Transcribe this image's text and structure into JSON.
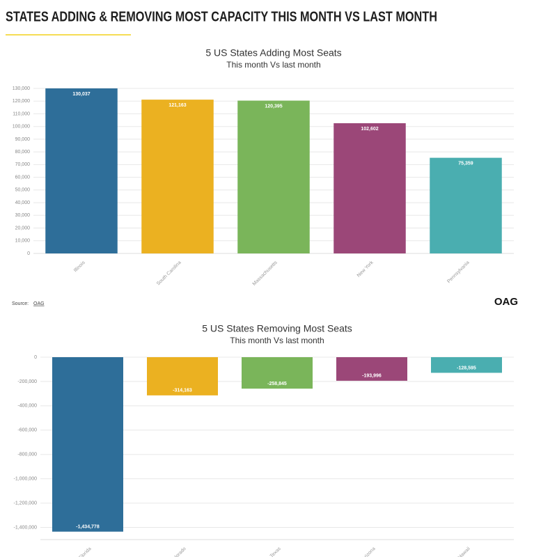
{
  "header": {
    "title": "STATES ADDING & REMOVING MOST CAPACITY THIS MONTH VS LAST MONTH"
  },
  "source": {
    "label": "Source:",
    "link": "OAG"
  },
  "logo": "OAG",
  "chart_data": [
    {
      "type": "bar",
      "title": "5 US States Adding Most Seats",
      "subtitle": "This month Vs last month",
      "categories": [
        "Illinois",
        "South Carolina",
        "Massachusetts",
        "New York",
        "Pennsylvania"
      ],
      "values": [
        130037,
        121163,
        120395,
        102602,
        75359
      ],
      "value_labels": [
        "130,037",
        "121,163",
        "120,395",
        "102,602",
        "75,359"
      ],
      "colors": [
        "#2e6e99",
        "#ebb121",
        "#7ab55a",
        "#9b4778",
        "#4aaeb0"
      ],
      "ylim": [
        0,
        130000
      ],
      "yticks": [
        0,
        {
          "value": 10000,
          "label": "10,000"
        },
        {
          "value": 20000,
          "label": "20,000"
        },
        {
          "value": 30000,
          "label": "30,000"
        },
        {
          "value": 40000,
          "label": "40,000"
        },
        {
          "value": 50000,
          "label": "50,000"
        },
        {
          "value": 60000,
          "label": "60,000"
        },
        {
          "value": 70000,
          "label": "70,000"
        },
        {
          "value": 80000,
          "label": "80,000"
        },
        {
          "value": 90000,
          "label": "90,000"
        },
        {
          "value": 100000,
          "label": "100,000"
        },
        {
          "value": 110000,
          "label": "110,000"
        },
        {
          "value": 120000,
          "label": "120,000"
        },
        {
          "value": 130000,
          "label": "130,000"
        }
      ],
      "grid": true
    },
    {
      "type": "bar",
      "title": "5 US States Removing Most Seats",
      "subtitle": "This month Vs last month",
      "categories": [
        "Florida",
        "Colorado",
        "Texas",
        "Arizona",
        "Hawaii"
      ],
      "values": [
        -1434778,
        -314163,
        -258845,
        -193996,
        -128595
      ],
      "value_labels": [
        "-1,434,778",
        "-314,163",
        "-258,845",
        "-193,996",
        "-128,595"
      ],
      "colors": [
        "#2e6e99",
        "#ebb121",
        "#7ab55a",
        "#9b4778",
        "#4aaeb0"
      ],
      "ylim": [
        -1500000,
        0
      ],
      "yticks": [
        0,
        {
          "value": -200000,
          "label": "-200,000"
        },
        {
          "value": -400000,
          "label": "-400,000"
        },
        {
          "value": -600000,
          "label": "-600,000"
        },
        {
          "value": -800000,
          "label": "-800,000"
        },
        {
          "value": -1000000,
          "label": "-1,000,000"
        },
        {
          "value": -1200000,
          "label": "-1,200,000"
        },
        {
          "value": -1400000,
          "label": "-1,400,000"
        }
      ],
      "grid": true
    }
  ]
}
